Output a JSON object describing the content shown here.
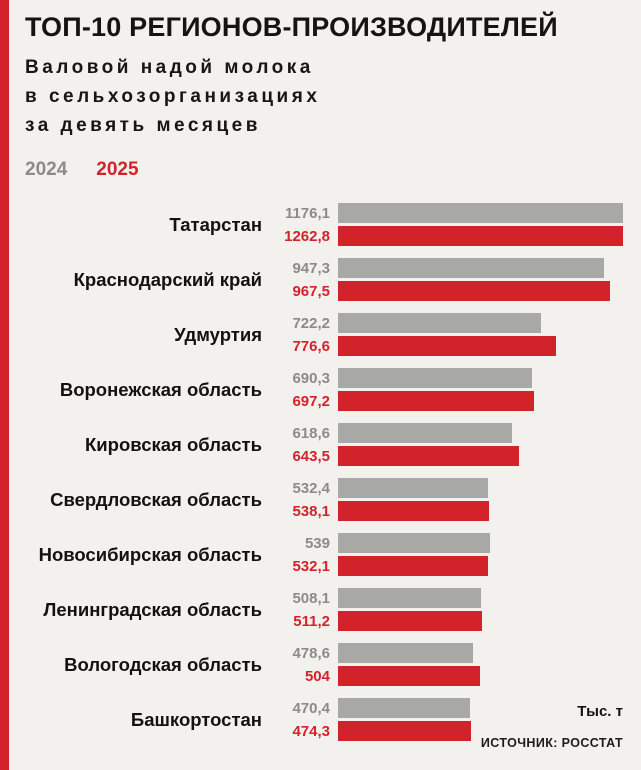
{
  "page": {
    "background": "#f2f1ed",
    "accent_red": "#d2232a",
    "bar_gray": "#a8a8a5",
    "text_gray": "#8b8b88"
  },
  "header": {
    "title": "ТОП-10 РЕГИОНОВ-ПРОИЗВОДИТЕЛЕЙ",
    "subtitle_lines": [
      "Валовой надой молока",
      "в сельхозорганизациях",
      "за девять месяцев"
    ]
  },
  "legend": [
    {
      "label": "2024",
      "color": "#8b8b88"
    },
    {
      "label": "2025",
      "color": "#d2232a"
    }
  ],
  "chart_data": {
    "type": "bar",
    "orientation": "horizontal",
    "title": "ТОП-10 РЕГИОНОВ-ПРОИЗВОДИТЕЛЕЙ",
    "subtitle": "Валовой надой молока в сельхозорганизациях за девять месяцев",
    "unit_label": "Тыс. т",
    "source": "ИСТОЧНИК: РОССТАТ",
    "legend_position": "top-left",
    "grid": false,
    "xlim": [
      0,
      1262.8
    ],
    "xmax": 1262.8,
    "categories": [
      "Татарстан",
      "Краснодарский край",
      "Удмуртия",
      "Воронежская область",
      "Кировская область",
      "Свердловская область",
      "Новосибирская область",
      "Ленинградская область",
      "Вологодская область",
      "Башкортостан"
    ],
    "series": [
      {
        "name": "2024",
        "color": "#a8a8a5",
        "values": [
          1176.1,
          947.3,
          722.2,
          690.3,
          618.6,
          532.4,
          539,
          508.1,
          478.6,
          470.4
        ],
        "labels": [
          "1176,1",
          "947,3",
          "722,2",
          "690,3",
          "618,6",
          "532,4",
          "539",
          "508,1",
          "478,6",
          "470,4"
        ]
      },
      {
        "name": "2025",
        "color": "#d2232a",
        "values": [
          1262.8,
          967.5,
          776.6,
          697.2,
          643.5,
          538.1,
          532.1,
          511.2,
          504,
          474.3
        ],
        "labels": [
          "1262,8",
          "967,5",
          "776,6",
          "697,2",
          "643,5",
          "538,1",
          "532,1",
          "511,2",
          "504",
          "474,3"
        ]
      }
    ]
  }
}
